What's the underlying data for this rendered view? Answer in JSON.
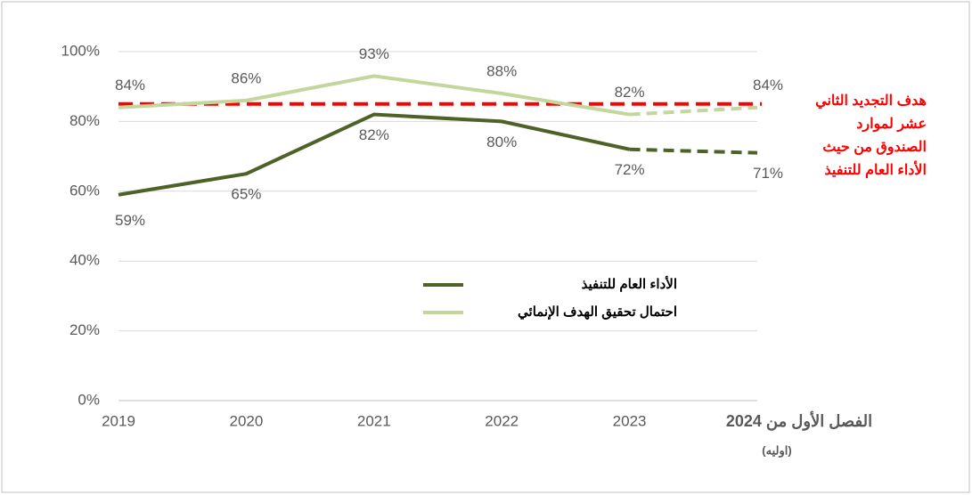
{
  "chart_data": {
    "type": "line",
    "categories": [
      "2019",
      "2020",
      "2021",
      "2022",
      "2023",
      "الفصل الأول من 2024"
    ],
    "category_note": "(اوليه)",
    "series": [
      {
        "name": "الأداء العام للتنفيذ",
        "color": "#4e6228",
        "values": [
          59,
          65,
          82,
          80,
          72,
          71
        ],
        "value_labels": [
          "59%",
          "65%",
          "82%",
          "80%",
          "72%",
          "71%"
        ],
        "label_position": "below"
      },
      {
        "name": "احتمال تحقيق الهدف الإنمائي",
        "color": "#c3d69b",
        "values": [
          84,
          86,
          93,
          88,
          82,
          84
        ],
        "value_labels": [
          "84%",
          "86%",
          "93%",
          "88%",
          "82%",
          "84%"
        ],
        "label_position": "above"
      }
    ],
    "dashed_last_segment": true,
    "target": {
      "value": 85,
      "color": "#ff0000",
      "label_lines": [
        "هدف التجديد الثاني",
        "عشر لموارد",
        "الصندوق من حيث",
        "الأداء العام للتنفيذ"
      ]
    },
    "ylim": [
      0,
      100
    ],
    "yticks": [
      {
        "value": 0,
        "label": "0%"
      },
      {
        "value": 20,
        "label": "20%"
      },
      {
        "value": 40,
        "label": "40%"
      },
      {
        "value": 60,
        "label": "60%"
      },
      {
        "value": 80,
        "label": "80%"
      },
      {
        "value": 100,
        "label": "100%"
      }
    ],
    "grid": true
  }
}
